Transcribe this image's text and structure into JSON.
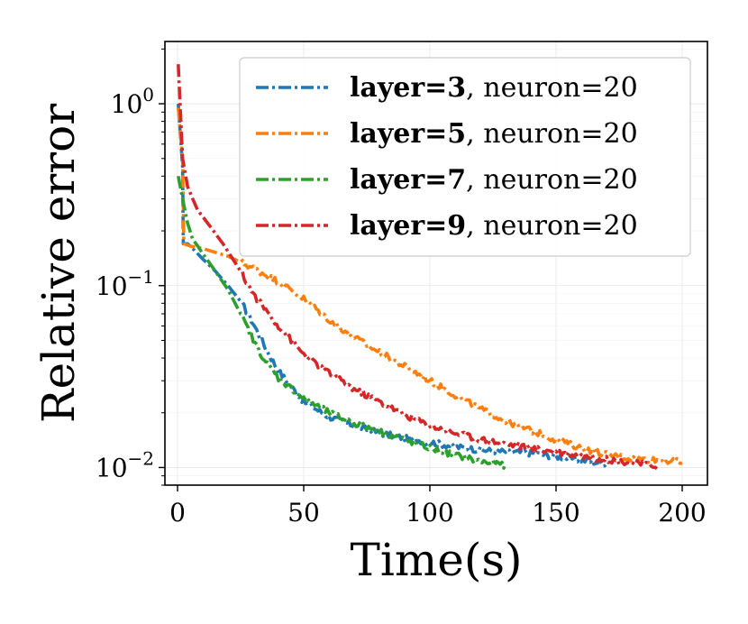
{
  "chart_data": {
    "type": "line",
    "xlabel": "Time(s)",
    "ylabel": "Relative error",
    "xlim": [
      -5,
      210
    ],
    "ylim": [
      0.008,
      2.2
    ],
    "yscale": "log",
    "grid": true,
    "legend_position": "top-right",
    "x_ticks": [
      {
        "value": 0,
        "label": "0"
      },
      {
        "value": 50,
        "label": "50"
      },
      {
        "value": 100,
        "label": "100"
      },
      {
        "value": 150,
        "label": "150"
      },
      {
        "value": 200,
        "label": "200"
      }
    ],
    "y_ticks": [
      {
        "value": 1,
        "base": "10",
        "exp": "0"
      },
      {
        "value": 0.1,
        "base": "10",
        "exp": "−1"
      },
      {
        "value": 0.01,
        "base": "10",
        "exp": "−2"
      }
    ],
    "series": [
      {
        "name_bold": "layer=3",
        "name_rest": ", neuron=20",
        "color": "#1f77b4",
        "x": [
          0.3,
          2,
          2.3,
          4,
          6,
          10,
          15,
          20,
          25,
          30,
          35,
          40,
          50,
          60,
          70,
          80,
          90,
          100,
          110,
          120,
          130,
          140,
          150,
          160,
          170
        ],
        "y": [
          1.0,
          0.45,
          0.17,
          0.17,
          0.16,
          0.14,
          0.12,
          0.1,
          0.082,
          0.062,
          0.045,
          0.034,
          0.023,
          0.019,
          0.017,
          0.0155,
          0.0145,
          0.0138,
          0.013,
          0.0125,
          0.0122,
          0.012,
          0.0115,
          0.011,
          0.0105
        ]
      },
      {
        "name_bold": "layer=5",
        "name_rest": ", neuron=20",
        "color": "#ff7f0e",
        "x": [
          0.3,
          2,
          2.5,
          5,
          10,
          20,
          30,
          40,
          50,
          60,
          70,
          80,
          90,
          100,
          110,
          120,
          130,
          140,
          150,
          160,
          170,
          180,
          190,
          200
        ],
        "y": [
          0.95,
          0.5,
          0.17,
          0.165,
          0.16,
          0.145,
          0.125,
          0.105,
          0.085,
          0.065,
          0.052,
          0.043,
          0.036,
          0.03,
          0.025,
          0.021,
          0.018,
          0.016,
          0.0142,
          0.0128,
          0.0118,
          0.0112,
          0.011,
          0.0107
        ]
      },
      {
        "name_bold": "layer=7",
        "name_rest": ", neuron=20",
        "color": "#2ca02c",
        "x": [
          0.3,
          2,
          4,
          6,
          8,
          10,
          15,
          20,
          25,
          30,
          35,
          40,
          50,
          60,
          70,
          80,
          90,
          100,
          110,
          120,
          130
        ],
        "y": [
          0.4,
          0.3,
          0.22,
          0.18,
          0.165,
          0.15,
          0.12,
          0.095,
          0.07,
          0.05,
          0.038,
          0.031,
          0.024,
          0.02,
          0.0175,
          0.0158,
          0.0142,
          0.0128,
          0.0117,
          0.0108,
          0.0103
        ]
      },
      {
        "name_bold": "layer=9",
        "name_rest": ", neuron=20",
        "color": "#d62728",
        "x": [
          0.3,
          2,
          4,
          6,
          8,
          12,
          18,
          25,
          30,
          40,
          50,
          60,
          70,
          80,
          90,
          100,
          110,
          120,
          130,
          140,
          150,
          160,
          170,
          180,
          190
        ],
        "y": [
          1.65,
          0.5,
          0.35,
          0.3,
          0.26,
          0.22,
          0.17,
          0.12,
          0.09,
          0.06,
          0.042,
          0.033,
          0.027,
          0.023,
          0.0195,
          0.017,
          0.0155,
          0.0143,
          0.0135,
          0.0128,
          0.0122,
          0.0116,
          0.0111,
          0.0106,
          0.0102
        ]
      }
    ]
  }
}
